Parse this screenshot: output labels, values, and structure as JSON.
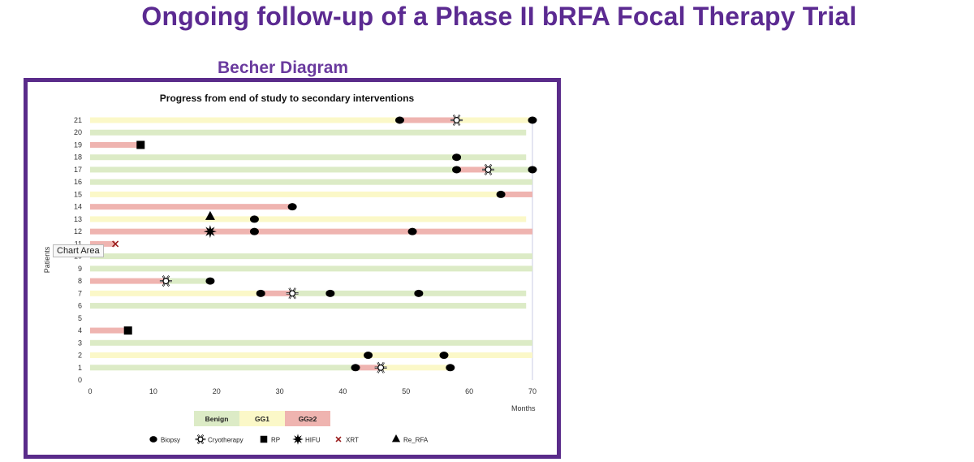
{
  "slide": {
    "title": "Ongoing follow-up of a Phase II bRFA Focal Therapy Trial",
    "subtitle": "Becher Diagram",
    "tooltip": "Chart Area"
  },
  "colors": {
    "accent_purple": "#5b2a91",
    "benign": "#dcebc6",
    "gg1": "#fbf8c8",
    "gg2": "#efb4b0",
    "marker": "#000000",
    "xrt": "#9a1c1c"
  },
  "chart_data": {
    "type": "scatter",
    "title": "Progress from end of study to secondary interventions",
    "xlabel": "Months",
    "ylabel": "Patients",
    "xlim": [
      0,
      70
    ],
    "ylim": [
      0,
      21
    ],
    "xticks": [
      0,
      10,
      20,
      30,
      40,
      50,
      60,
      70
    ],
    "yticks": [
      0,
      1,
      2,
      3,
      4,
      5,
      6,
      7,
      8,
      9,
      10,
      11,
      12,
      13,
      14,
      15,
      16,
      17,
      18,
      19,
      20,
      21
    ],
    "grid": false,
    "bar_legend": [
      {
        "key": "benign",
        "label": "Benign"
      },
      {
        "key": "gg1",
        "label": "GG1"
      },
      {
        "key": "gg2",
        "label": "GG≥2"
      }
    ],
    "marker_legend": [
      {
        "key": "biopsy",
        "label": "Biopsy"
      },
      {
        "key": "cryo",
        "label": "Cryotherapy"
      },
      {
        "key": "rp",
        "label": "RP"
      },
      {
        "key": "hifu",
        "label": "HIFU"
      },
      {
        "key": "xrt",
        "label": "XRT"
      },
      {
        "key": "re_rfa",
        "label": "Re_RFA"
      }
    ],
    "patients": [
      {
        "id": 1,
        "segments": [
          {
            "from": 0,
            "to": 42,
            "status": "benign"
          },
          {
            "from": 42,
            "to": 46,
            "status": "gg2"
          },
          {
            "from": 46,
            "to": 57,
            "status": "gg1"
          }
        ],
        "events": [
          {
            "t": 42,
            "type": "biopsy"
          },
          {
            "t": 46,
            "type": "cryo"
          },
          {
            "t": 57,
            "type": "biopsy"
          }
        ]
      },
      {
        "id": 2,
        "segments": [
          {
            "from": 0,
            "to": 70,
            "status": "gg1"
          }
        ],
        "events": [
          {
            "t": 44,
            "type": "biopsy"
          },
          {
            "t": 56,
            "type": "biopsy"
          }
        ]
      },
      {
        "id": 3,
        "segments": [
          {
            "from": 0,
            "to": 70,
            "status": "benign"
          }
        ],
        "events": []
      },
      {
        "id": 4,
        "segments": [
          {
            "from": 0,
            "to": 6,
            "status": "gg2"
          }
        ],
        "events": [
          {
            "t": 6,
            "type": "rp"
          }
        ]
      },
      {
        "id": 6,
        "segments": [
          {
            "from": 0,
            "to": 69,
            "status": "benign"
          }
        ],
        "events": []
      },
      {
        "id": 7,
        "segments": [
          {
            "from": 0,
            "to": 27,
            "status": "gg1"
          },
          {
            "from": 27,
            "to": 32,
            "status": "gg2"
          },
          {
            "from": 32,
            "to": 69,
            "status": "benign"
          }
        ],
        "events": [
          {
            "t": 27,
            "type": "biopsy"
          },
          {
            "t": 32,
            "type": "cryo"
          },
          {
            "t": 38,
            "type": "biopsy"
          },
          {
            "t": 52,
            "type": "biopsy"
          }
        ]
      },
      {
        "id": 8,
        "segments": [
          {
            "from": 0,
            "to": 12,
            "status": "gg2"
          },
          {
            "from": 12,
            "to": 19,
            "status": "benign"
          }
        ],
        "events": [
          {
            "t": 12,
            "type": "cryo"
          },
          {
            "t": 19,
            "type": "biopsy"
          }
        ]
      },
      {
        "id": 9,
        "segments": [
          {
            "from": 0,
            "to": 70,
            "status": "benign"
          }
        ],
        "events": []
      },
      {
        "id": 10,
        "segments": [
          {
            "from": 0,
            "to": 70,
            "status": "benign"
          }
        ],
        "events": []
      },
      {
        "id": 11,
        "segments": [
          {
            "from": 0,
            "to": 4,
            "status": "gg2"
          }
        ],
        "events": [
          {
            "t": 4,
            "type": "xrt"
          }
        ]
      },
      {
        "id": 12,
        "segments": [
          {
            "from": 0,
            "to": 70,
            "status": "gg2"
          }
        ],
        "events": [
          {
            "t": 19,
            "type": "hifu"
          },
          {
            "t": 26,
            "type": "biopsy"
          },
          {
            "t": 51,
            "type": "biopsy"
          }
        ]
      },
      {
        "id": 13,
        "segments": [
          {
            "from": 0,
            "to": 69,
            "status": "gg1"
          }
        ],
        "events": [
          {
            "t": 19,
            "type": "re_rfa"
          },
          {
            "t": 26,
            "type": "biopsy"
          }
        ]
      },
      {
        "id": 14,
        "segments": [
          {
            "from": 0,
            "to": 32,
            "status": "gg2"
          }
        ],
        "events": [
          {
            "t": 32,
            "type": "biopsy"
          }
        ]
      },
      {
        "id": 15,
        "segments": [
          {
            "from": 0,
            "to": 65,
            "status": "gg1"
          },
          {
            "from": 65,
            "to": 70,
            "status": "gg2"
          }
        ],
        "events": [
          {
            "t": 65,
            "type": "biopsy"
          }
        ]
      },
      {
        "id": 16,
        "segments": [
          {
            "from": 0,
            "to": 70,
            "status": "benign"
          }
        ],
        "events": []
      },
      {
        "id": 17,
        "segments": [
          {
            "from": 0,
            "to": 58,
            "status": "benign"
          },
          {
            "from": 58,
            "to": 63,
            "status": "gg2"
          },
          {
            "from": 63,
            "to": 70,
            "status": "benign"
          }
        ],
        "events": [
          {
            "t": 58,
            "type": "biopsy"
          },
          {
            "t": 63,
            "type": "cryo"
          },
          {
            "t": 70,
            "type": "biopsy"
          }
        ]
      },
      {
        "id": 18,
        "segments": [
          {
            "from": 0,
            "to": 69,
            "status": "benign"
          }
        ],
        "events": [
          {
            "t": 58,
            "type": "biopsy"
          }
        ]
      },
      {
        "id": 19,
        "segments": [
          {
            "from": 0,
            "to": 8,
            "status": "gg2"
          }
        ],
        "events": [
          {
            "t": 8,
            "type": "rp"
          }
        ]
      },
      {
        "id": 20,
        "segments": [
          {
            "from": 0,
            "to": 69,
            "status": "benign"
          }
        ],
        "events": []
      },
      {
        "id": 21,
        "segments": [
          {
            "from": 0,
            "to": 49,
            "status": "gg1"
          },
          {
            "from": 49,
            "to": 58,
            "status": "gg2"
          },
          {
            "from": 58,
            "to": 70,
            "status": "gg1"
          }
        ],
        "events": [
          {
            "t": 49,
            "type": "biopsy"
          },
          {
            "t": 58,
            "type": "cryo"
          },
          {
            "t": 70,
            "type": "biopsy"
          }
        ]
      }
    ]
  }
}
